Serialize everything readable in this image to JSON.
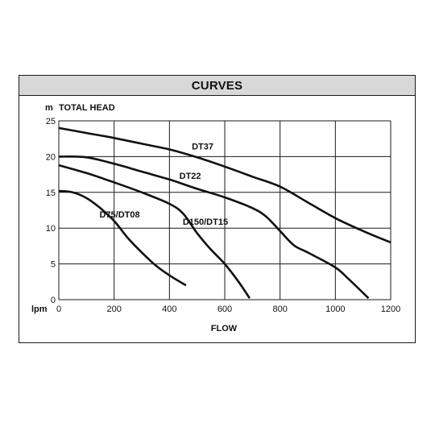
{
  "colors": {
    "header_bg": "#d8d8d8",
    "grid": "#1a1a1a",
    "curve": "#111111",
    "text": "#111111"
  },
  "header": {
    "title": "CURVES"
  },
  "chart_data": {
    "type": "line",
    "title": "CURVES",
    "ylabel_unit": "m",
    "ylabel": "TOTAL HEAD",
    "xlabel_unit": "lpm",
    "xlabel": "FLOW",
    "xlim": [
      0,
      1200
    ],
    "ylim": [
      0,
      25
    ],
    "x_ticks": [
      0,
      200,
      400,
      600,
      800,
      1000,
      1200
    ],
    "y_ticks": [
      0,
      5,
      10,
      15,
      20,
      25
    ],
    "grid": true,
    "series": [
      {
        "name": "DT37",
        "points": [
          [
            0,
            24
          ],
          [
            100,
            23.3
          ],
          [
            200,
            22.6
          ],
          [
            300,
            21.8
          ],
          [
            400,
            21
          ],
          [
            500,
            19.9
          ],
          [
            600,
            18.6
          ],
          [
            700,
            17.2
          ],
          [
            800,
            15.8
          ],
          [
            900,
            13.6
          ],
          [
            1000,
            11.4
          ],
          [
            1100,
            9.6
          ],
          [
            1200,
            8
          ]
        ]
      },
      {
        "name": "DT22",
        "points": [
          [
            0,
            20
          ],
          [
            100,
            19.9
          ],
          [
            200,
            19
          ],
          [
            300,
            17.9
          ],
          [
            400,
            16.8
          ],
          [
            500,
            15.5
          ],
          [
            600,
            14.3
          ],
          [
            700,
            12.8
          ],
          [
            750,
            11.6
          ],
          [
            800,
            9.6
          ],
          [
            850,
            7.6
          ],
          [
            900,
            6.6
          ],
          [
            1000,
            4.5
          ],
          [
            1050,
            2.8
          ],
          [
            1120,
            0.2
          ]
        ]
      },
      {
        "name": "D150/DT15",
        "points": [
          [
            0,
            18.8
          ],
          [
            100,
            17.7
          ],
          [
            200,
            16.4
          ],
          [
            300,
            15
          ],
          [
            400,
            13.4
          ],
          [
            450,
            12
          ],
          [
            500,
            9.3
          ],
          [
            550,
            7
          ],
          [
            600,
            5
          ],
          [
            650,
            2.5
          ],
          [
            690,
            0.2
          ]
        ]
      },
      {
        "name": "D75/DT08",
        "points": [
          [
            0,
            15.2
          ],
          [
            50,
            15
          ],
          [
            100,
            14.2
          ],
          [
            150,
            12.8
          ],
          [
            200,
            11
          ],
          [
            250,
            8.6
          ],
          [
            300,
            6.6
          ],
          [
            350,
            4.8
          ],
          [
            400,
            3.4
          ],
          [
            460,
            2
          ]
        ]
      }
    ],
    "labels": [
      {
        "series": "DT37",
        "x": 520,
        "y": 21
      },
      {
        "series": "DT22",
        "x": 475,
        "y": 16.9
      },
      {
        "series": "D150/DT15",
        "x": 530,
        "y": 10.5
      },
      {
        "series": "D75/DT08",
        "x": 220,
        "y": 11.5
      }
    ]
  }
}
